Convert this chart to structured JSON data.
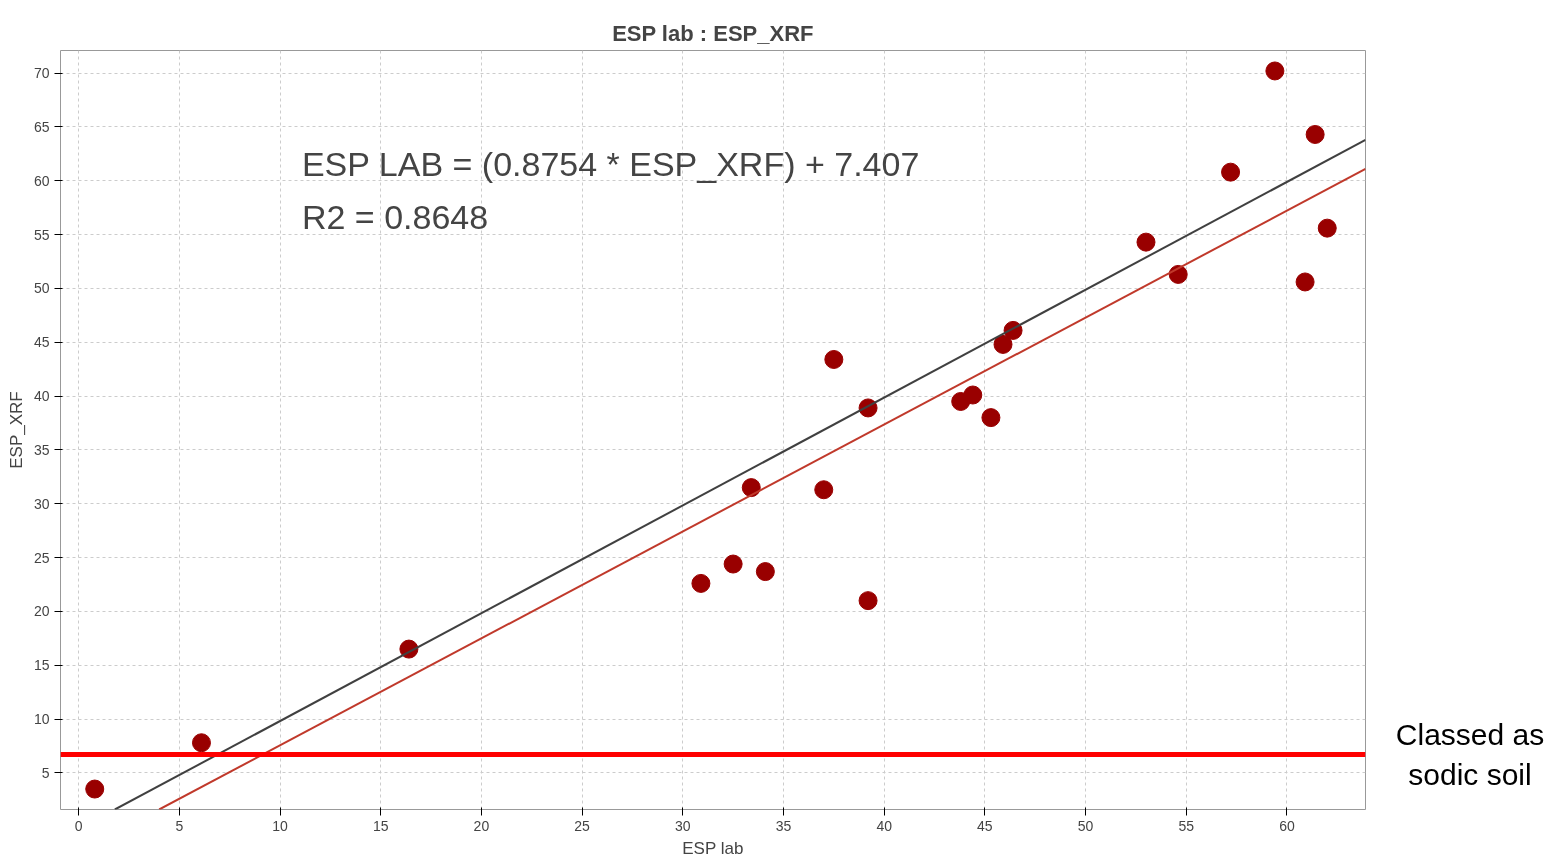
{
  "chart_data": {
    "type": "scatter",
    "title": "ESP lab : ESP_XRF",
    "xlabel": "ESP lab",
    "ylabel": "ESP_XRF",
    "annotations": [
      "ESP LAB = (0.8754 * ESP_XRF) + 7.407",
      "R2 = 0.8648"
    ],
    "xlim": [
      -0.9,
      63.9
    ],
    "ylim": [
      1.6,
      72.1
    ],
    "xticks": [
      0,
      5,
      10,
      15,
      20,
      25,
      30,
      35,
      40,
      45,
      50,
      55,
      60
    ],
    "yticks": [
      5,
      10,
      15,
      20,
      25,
      30,
      35,
      40,
      45,
      50,
      55,
      60,
      65,
      70
    ],
    "grid": true,
    "series": [
      {
        "marker": "circle",
        "color": "#990000",
        "x": [
          0.8,
          6.1,
          16.4,
          30.9,
          32.5,
          34.1,
          33.4,
          37.0,
          37.5,
          39.2,
          39.2,
          43.8,
          44.4,
          45.3,
          45.9,
          46.4,
          53.0,
          54.6,
          57.2,
          59.4,
          61.4,
          60.9,
          62.0
        ],
        "values": [
          3.5,
          7.8,
          16.5,
          22.6,
          24.4,
          23.7,
          31.5,
          31.3,
          43.4,
          38.9,
          21.0,
          39.5,
          40.1,
          38.0,
          44.8,
          46.1,
          54.3,
          51.3,
          60.8,
          70.2,
          64.3,
          50.6,
          55.6
        ]
      },
      {
        "type": "line",
        "color": "#404040",
        "x": [
          1.8,
          63.9
        ],
        "values": [
          1.6,
          63.8
        ]
      },
      {
        "type": "line",
        "color": "#c0392b",
        "x": [
          4.0,
          63.9
        ],
        "values": [
          1.6,
          61.1
        ]
      }
    ],
    "ref_lines": [
      {
        "axis": "y",
        "value": 6.7,
        "label": "Classed as\nsodic soil",
        "color": "#ff0000"
      }
    ]
  }
}
